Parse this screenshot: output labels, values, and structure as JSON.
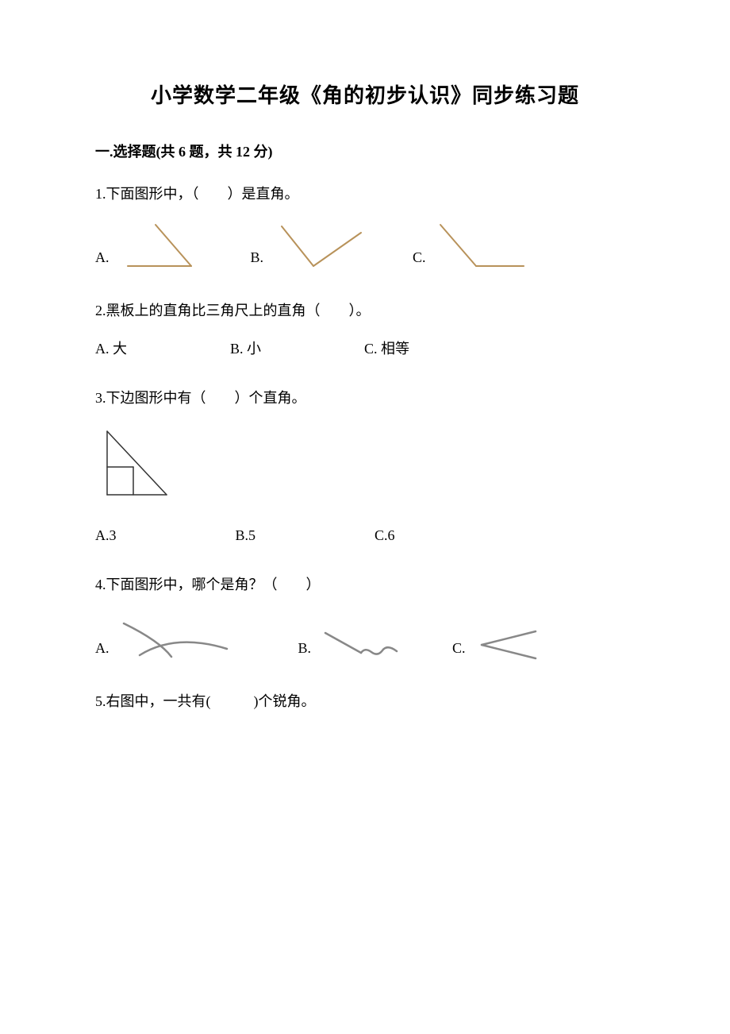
{
  "title": "小学数学二年级《角的初步认识》同步练习题",
  "section1": {
    "header": "一.选择题(共 6 题，共 12 分)",
    "q1": {
      "text": "1.下面图形中，（　　）是直角。",
      "optA": "A.",
      "optB": "B.",
      "optC": "C.",
      "angles": {
        "stroke": "#b8925a",
        "strokeWidth": 2,
        "a": {
          "w": 110,
          "h": 70,
          "lines": [
            [
              15,
              60,
              95,
              60
            ],
            [
              95,
              60,
              50,
              8
            ]
          ]
        },
        "b": {
          "w": 120,
          "h": 70,
          "lines": [
            [
              15,
              10,
              55,
              60
            ],
            [
              55,
              60,
              115,
              18
            ]
          ]
        },
        "c": {
          "w": 120,
          "h": 70,
          "lines": [
            [
              10,
              8,
              55,
              60
            ],
            [
              55,
              60,
              115,
              60
            ]
          ]
        }
      }
    },
    "q2": {
      "text": "2.黑板上的直角比三角尺上的直角（　　）。",
      "optA": "A. 大",
      "optB": "B. 小",
      "optC": "C. 相等"
    },
    "q3": {
      "text": "3.下边图形中有（　　）个直角。",
      "optA": "A.3",
      "optB": "B.5",
      "optC": "C.6",
      "figure": {
        "stroke": "#333333",
        "strokeWidth": 1.5,
        "w": 100,
        "h": 100,
        "lines": [
          [
            15,
            10,
            15,
            90
          ],
          [
            15,
            90,
            90,
            90
          ],
          [
            15,
            10,
            90,
            90
          ],
          [
            15,
            55,
            48,
            55
          ],
          [
            48,
            55,
            48,
            90
          ]
        ]
      }
    },
    "q4": {
      "text": "4.下面图形中，哪个是角？（　　）",
      "optA": "A.",
      "optB": "B.",
      "optC": "C.",
      "figures": {
        "stroke": "#888888",
        "strokeWidth": 2.5,
        "a": {
          "w": 150,
          "h": 60,
          "paths": [
            "M 10 8 Q 55 30 70 50",
            "M 30 48 Q 75 20 140 40"
          ]
        },
        "b": {
          "w": 110,
          "h": 50,
          "paths": [
            "M 10 10 L 55 35",
            "M 55 35 Q 60 28 68 34 Q 76 40 82 32 Q 88 24 100 33"
          ]
        },
        "c": {
          "w": 90,
          "h": 50,
          "paths": [
            "M 80 8 L 12 25",
            "M 12 25 L 80 42"
          ]
        }
      }
    },
    "q5": {
      "text": "5.右图中，一共有(　　　)个锐角。"
    }
  },
  "colors": {
    "text": "#000000",
    "bg": "#ffffff"
  }
}
